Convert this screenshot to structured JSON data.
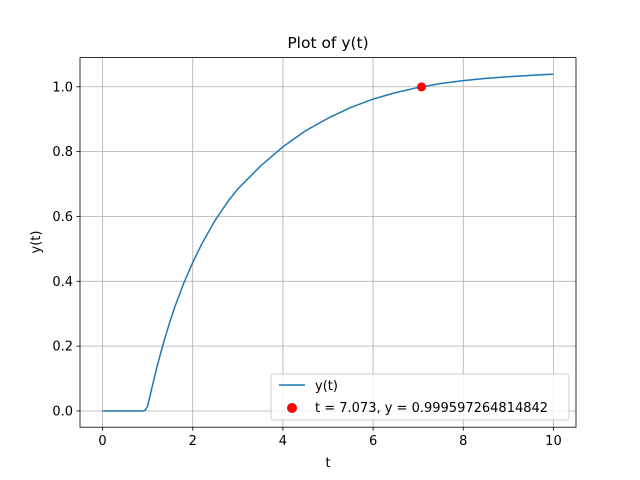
{
  "chart_data": {
    "type": "line",
    "title": "Plot of y(t)",
    "xlabel": "t",
    "ylabel": "y(t)",
    "xlim": [
      -0.5,
      10.5
    ],
    "ylim": [
      -0.05,
      1.09
    ],
    "xticks": [
      0,
      2,
      4,
      6,
      8,
      10
    ],
    "yticks": [
      0.0,
      0.2,
      0.4,
      0.6,
      0.8,
      1.0
    ],
    "xtick_labels": [
      "0",
      "2",
      "4",
      "6",
      "8",
      "10"
    ],
    "ytick_labels": [
      "0.0",
      "0.2",
      "0.4",
      "0.6",
      "0.8",
      "1.0"
    ],
    "grid": true,
    "legend_position": "lower-right",
    "series": [
      {
        "name": "y(t)",
        "type": "line",
        "color": "#1f77b4",
        "x": [
          0,
          0.5,
          0.9,
          0.95,
          1.0,
          1.05,
          1.1,
          1.2,
          1.3,
          1.4,
          1.5,
          1.6,
          1.8,
          2.0,
          2.2,
          2.5,
          2.8,
          3.0,
          3.5,
          4.0,
          4.5,
          5.0,
          5.5,
          6.0,
          6.5,
          7.0,
          7.5,
          8.0,
          8.5,
          9.0,
          9.5,
          10.0
        ],
        "values": [
          0.0,
          0.0,
          0.0,
          0.003,
          0.015,
          0.045,
          0.075,
          0.132,
          0.184,
          0.233,
          0.278,
          0.32,
          0.394,
          0.458,
          0.515,
          0.589,
          0.65,
          0.685,
          0.755,
          0.815,
          0.864,
          0.903,
          0.936,
          0.962,
          0.982,
          0.998,
          1.01,
          1.019,
          1.026,
          1.031,
          1.035,
          1.039
        ]
      },
      {
        "name": "t = 7.073, y = 0.999597264814842",
        "type": "scatter",
        "color": "#ff0000",
        "x": [
          7.073
        ],
        "values": [
          0.999597264814842
        ]
      }
    ]
  }
}
